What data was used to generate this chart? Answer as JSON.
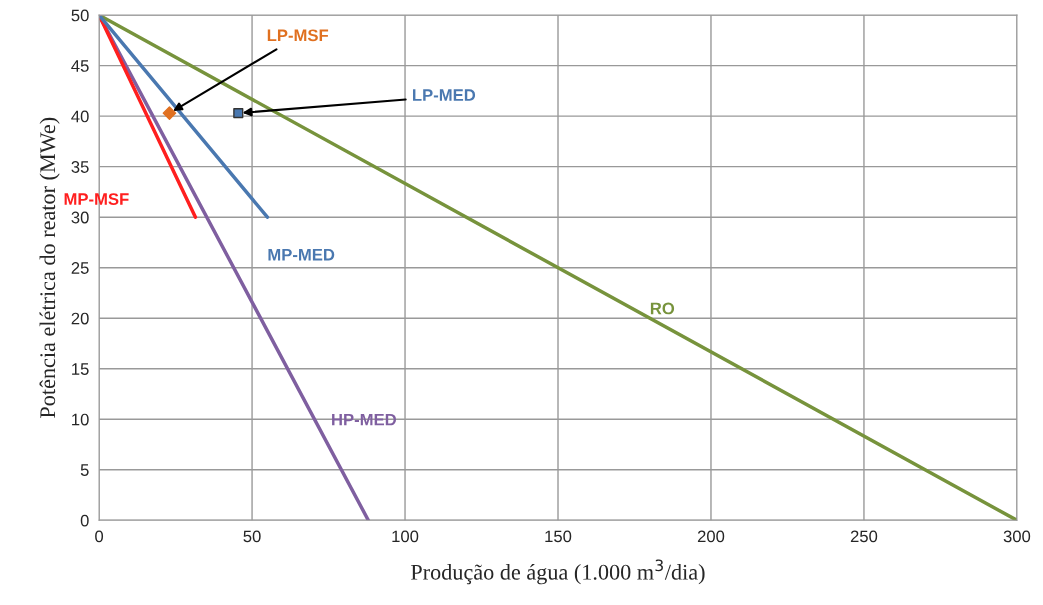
{
  "chart_data": {
    "type": "line",
    "xlabel": "Produção de água (1.000 m$^{3}$/dia)",
    "ylabel": "Potência elétrica do reator (MWe)",
    "xlim": [
      0,
      300
    ],
    "xticks": [
      0,
      50,
      100,
      150,
      200,
      250,
      300
    ],
    "ylim": [
      0,
      50
    ],
    "yticks": [
      0,
      5,
      10,
      15,
      20,
      25,
      30,
      35,
      40,
      45,
      50
    ],
    "grid": true,
    "legend": false,
    "series": [
      {
        "name": "RO",
        "color": "#77933c",
        "x": [
          0,
          300
        ],
        "values": [
          50,
          0
        ]
      },
      {
        "name": "HP-MED",
        "color": "#7f5fa0",
        "x": [
          0,
          88
        ],
        "values": [
          50,
          0
        ]
      },
      {
        "name": "MP-MSF",
        "color": "#ff1f1f",
        "x": [
          0,
          31.5
        ],
        "values": [
          50,
          30
        ]
      },
      {
        "name": "MP-MED",
        "color": "#4a78b0",
        "x": [
          0,
          55
        ],
        "values": [
          50,
          30
        ]
      },
      {
        "name": "LP-MSF",
        "type": "scatter",
        "marker": "diamond",
        "color": "#e07020",
        "x": [
          23
        ],
        "values": [
          40.3
        ]
      },
      {
        "name": "LP-MED",
        "type": "scatter",
        "marker": "square",
        "color": "#4a78b0",
        "x": [
          45.5
        ],
        "values": [
          40.3
        ]
      }
    ]
  }
}
